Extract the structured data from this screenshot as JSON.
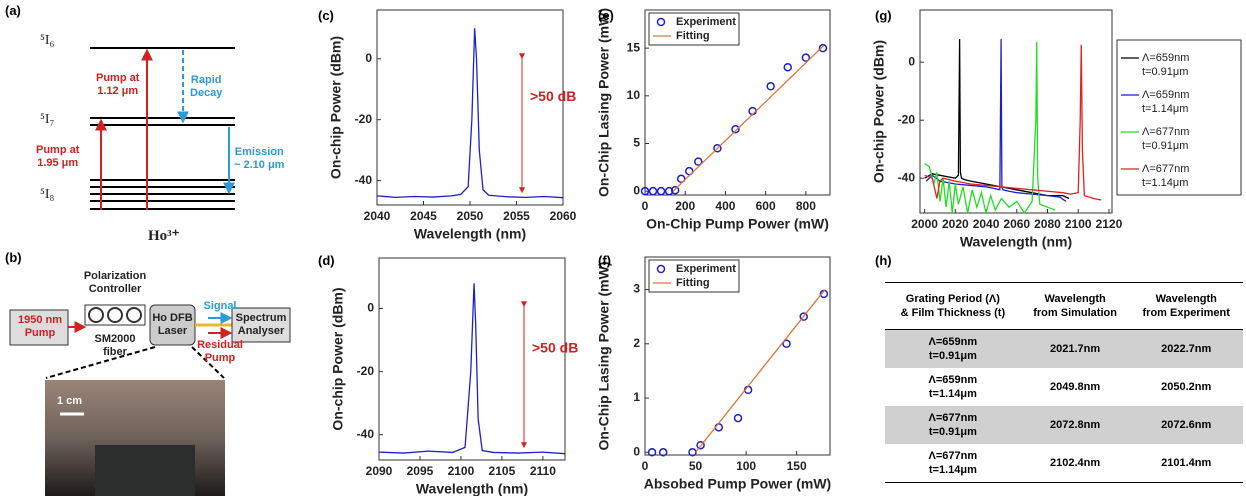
{
  "panel_labels": [
    "(a)",
    "(b)",
    "(c)",
    "(d)",
    "(e)",
    "(f)",
    "(g)",
    "(h)"
  ],
  "energy_diagram": {
    "levels": [
      "⁵I₆",
      "⁵I₇",
      "⁵I₈"
    ],
    "ion": "Ho³⁺",
    "arrow_labels": [
      "Pump at\n1.12 μm",
      "Rapid\nDecay",
      "Pump at\n1.95 μm",
      "Emission\n~ 2.10 μm"
    ]
  },
  "setup_diagram": {
    "pump": "1950 nm\nPump",
    "controller": "Polarization\nController",
    "fiber": "SM2000\nfiber",
    "laser": "Ho DFB\nLaser",
    "signal": "Signal",
    "residual": "Residual\nPump",
    "analyser": "Spectrum\nAnalyser",
    "scale_bar": "1 cm"
  },
  "chart_data": [
    {
      "type": "line",
      "xlabel": "Wavelength (nm)",
      "ylabel": "On-chip Power (dBm)",
      "annotation": ">50 dB",
      "x": [
        2040,
        2042,
        2044,
        2046,
        2048,
        2049,
        2049.8,
        2050.2,
        2050.5,
        2050.7,
        2051,
        2051.4,
        2052,
        2054,
        2056,
        2058,
        2060
      ],
      "series": [
        {
          "color": "#1f1fc8",
          "values": [
            -45,
            -45.5,
            -45.2,
            -45.4,
            -45,
            -44.5,
            -42,
            -20,
            10,
            0,
            -30,
            -43,
            -44.8,
            -45.3,
            -45.5,
            -45.2,
            -45.6
          ]
        }
      ],
      "xlim": [
        2040,
        2060
      ],
      "ylim": [
        -48,
        16
      ],
      "xticks": [
        2040,
        2045,
        2050,
        2055,
        2060
      ],
      "yticks": [
        -40,
        -20,
        0
      ]
    },
    {
      "type": "line",
      "xlabel": "Wavelength (nm)",
      "ylabel": "On-chip Power (dBm)",
      "annotation": ">50 dB",
      "x": [
        2090,
        2093,
        2096,
        2099,
        2100.5,
        2101.2,
        2101.6,
        2101.8,
        2102.1,
        2102.6,
        2104,
        2107,
        2110,
        2112.7
      ],
      "series": [
        {
          "color": "#1f1fc8",
          "values": [
            -45.5,
            -45.8,
            -45.2,
            -45.6,
            -44,
            -20,
            8,
            -5,
            -35,
            -45,
            -45.6,
            -45.8,
            -45.5,
            -46
          ]
        }
      ],
      "xlim": [
        2090,
        2112.7
      ],
      "ylim": [
        -48,
        16
      ],
      "xticks": [
        2090,
        2095,
        2100,
        2105,
        2110
      ],
      "yticks": [
        -40,
        -20,
        0
      ]
    },
    {
      "type": "scatter",
      "xlabel": "On-Chip Pump Power (mW)",
      "ylabel": "On-Chip Lasing Power (mW)",
      "legend": "upper left",
      "series": [
        {
          "name": "Experiment",
          "color": "#1f1fc8",
          "style": "markers",
          "x": [
            0,
            40,
            80,
            120,
            150,
            180,
            220,
            265,
            360,
            450,
            535,
            625,
            710,
            800,
            885
          ],
          "values": [
            0,
            0,
            0,
            0,
            0.1,
            1.3,
            2.1,
            3.1,
            4.5,
            6.5,
            8.4,
            11,
            13,
            14,
            15
          ]
        },
        {
          "name": "Fitting",
          "color": "#d9773a",
          "style": "line",
          "x": [
            140,
            890
          ],
          "values": [
            0,
            15.3
          ]
        }
      ],
      "xlim": [
        0,
        920
      ],
      "ylim": [
        -0.4,
        19
      ],
      "xticks": [
        0,
        200,
        400,
        600,
        800
      ],
      "yticks": [
        0,
        5,
        10,
        15
      ]
    },
    {
      "type": "scatter",
      "xlabel": "Absobed Pump Power (mW)",
      "ylabel": "On-Chip Lasing Power (mW)",
      "legend": "upper left",
      "series": [
        {
          "name": "Experiment",
          "color": "#1f1fc8",
          "style": "markers",
          "x": [
            7,
            18,
            47,
            55,
            73,
            92,
            102,
            140,
            157,
            177
          ],
          "values": [
            0,
            0,
            0,
            0.13,
            0.46,
            0.63,
            1.15,
            2,
            2.5,
            2.92
          ]
        },
        {
          "name": "Fitting",
          "color": "#d9773a",
          "style": "line",
          "x": [
            50,
            178
          ],
          "values": [
            0,
            3
          ]
        }
      ],
      "xlim": [
        0,
        183
      ],
      "ylim": [
        -0.05,
        3.6
      ],
      "xticks": [
        0,
        50,
        100,
        150
      ],
      "yticks": [
        0,
        1,
        2,
        3
      ]
    },
    {
      "type": "line",
      "xlabel": "Wavelength (nm)",
      "ylabel": "On-chip Power (dBm)",
      "legend": "right",
      "series": [
        {
          "name": "Λ=659nm\nt=0.91μm",
          "color": "#000000",
          "x": [
            2000,
            2005,
            2010,
            2015,
            2020,
            2022,
            2022.8,
            2023.3,
            2024,
            2026,
            2030,
            2040,
            2050,
            2060,
            2070,
            2080,
            2090,
            2094
          ],
          "values": [
            -40,
            -38.5,
            -39,
            -39.5,
            -40,
            -39,
            8,
            -38,
            -40,
            -40.5,
            -41,
            -42,
            -43,
            -44,
            -45,
            -46,
            -46,
            -47
          ]
        },
        {
          "name": "Λ=659nm\nt=1.14μm",
          "color": "#1f1fc8",
          "x": [
            2001,
            2005,
            2010,
            2020,
            2030,
            2040,
            2045,
            2049,
            2049.8,
            2050.3,
            2051,
            2055,
            2060,
            2070,
            2080,
            2088,
            2092
          ],
          "values": [
            -41,
            -39,
            -41,
            -42,
            -42.5,
            -43,
            -43.5,
            -44,
            8,
            -43,
            -44,
            -44.5,
            -45,
            -45.5,
            -46,
            -46.5,
            -48
          ]
        },
        {
          "name": "Λ=677nm\nt=0.91μm",
          "color": "#22dd22",
          "x": [
            2000,
            2003,
            2006,
            2008,
            2010,
            2012,
            2014,
            2016,
            2018,
            2020,
            2022,
            2025,
            2028,
            2031,
            2034,
            2037,
            2040,
            2043,
            2046,
            2050,
            2055,
            2060,
            2065,
            2070,
            2072.4,
            2073,
            2073.6,
            2075,
            2080,
            2085
          ],
          "values": [
            -35,
            -36,
            -42,
            -38,
            -48,
            -40,
            -50,
            -41,
            -52,
            -42,
            -49,
            -43,
            -52,
            -44,
            -50,
            -45,
            -52,
            -46,
            -51,
            -47,
            -50,
            -48,
            -52,
            -48,
            -20,
            7,
            -40,
            -49,
            -50,
            -51
          ]
        },
        {
          "name": "Λ=677nm\nt=1.14μm",
          "color": "#dd2222",
          "x": [
            2000,
            2005,
            2008,
            2010,
            2012,
            2020,
            2030,
            2040,
            2050,
            2060,
            2070,
            2080,
            2090,
            2095,
            2100,
            2101.3,
            2102,
            2102.7,
            2104,
            2110,
            2115
          ],
          "values": [
            -39,
            -40,
            -47,
            -41,
            -40,
            -41,
            -42,
            -42.5,
            -43,
            -43.5,
            -44,
            -44.5,
            -45,
            -45.5,
            -45,
            -20,
            6,
            -30,
            -46,
            -47,
            -47.5
          ]
        }
      ],
      "xlim": [
        1997,
        2122
      ],
      "ylim": [
        -52,
        18
      ],
      "xticks": [
        2000,
        2020,
        2040,
        2060,
        2080,
        2100,
        2120
      ],
      "yticks": [
        -40,
        -20,
        0
      ]
    }
  ],
  "table": {
    "header": [
      "Grating Period (Λ)\n& Film Thickness (t)",
      "Wavelength\nfrom Simulation",
      "Wavelength\nfrom Experiment"
    ],
    "rows": [
      [
        "Λ=659nm\nt=0.91μm",
        "2021.7nm",
        "2022.7nm"
      ],
      [
        "Λ=659nm\nt=1.14μm",
        "2049.8nm",
        "2050.2nm"
      ],
      [
        "Λ=677nm\nt=0.91μm",
        "2072.8nm",
        "2072.6nm"
      ],
      [
        "Λ=677nm\nt=1.14μm",
        "2102.4nm",
        "2101.4nm"
      ]
    ]
  }
}
